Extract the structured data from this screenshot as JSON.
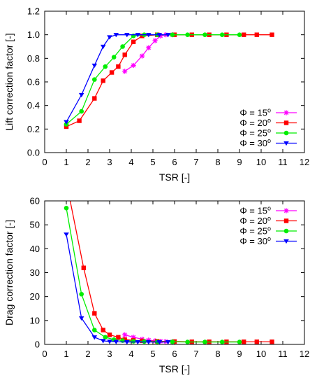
{
  "chart_data": [
    {
      "type": "line",
      "xlabel": "TSR [-]",
      "ylabel": "Lift correction factor [-]",
      "xlim": [
        0,
        12
      ],
      "ylim": [
        0,
        1.2
      ],
      "xticks": [
        "0",
        "1",
        "2",
        "3",
        "4",
        "5",
        "6",
        "7",
        "8",
        "9",
        "10",
        "11",
        "12"
      ],
      "yticks": [
        "0.0",
        "0.2",
        "0.4",
        "0.6",
        "0.8",
        "1.0",
        "1.2"
      ],
      "legend_position": "bottom-right",
      "series": [
        {
          "label": "Φ = 15",
          "sup": "o",
          "color": "#ff00ff",
          "marker": "star",
          "x": [
            3.7,
            4.1,
            4.5,
            4.8,
            5.1,
            5.35,
            5.6,
            5.9
          ],
          "y": [
            0.69,
            0.74,
            0.82,
            0.89,
            0.95,
            0.99,
            1.0,
            1.0
          ]
        },
        {
          "label": "Φ = 20",
          "sup": "o",
          "color": "#ff0000",
          "marker": "square",
          "x": [
            1.0,
            1.6,
            2.3,
            2.7,
            3.1,
            3.4,
            3.7,
            4.1,
            4.5,
            5.2,
            6.0,
            6.8,
            7.6,
            8.4,
            9.2,
            9.8,
            10.5
          ],
          "y": [
            0.22,
            0.27,
            0.46,
            0.61,
            0.68,
            0.73,
            0.83,
            0.94,
            0.99,
            1.0,
            1.0,
            1.0,
            1.0,
            1.0,
            1.0,
            1.0,
            1.0
          ]
        },
        {
          "label": "Φ = 25",
          "sup": "o",
          "color": "#00ee00",
          "marker": "circle",
          "x": [
            1.0,
            1.7,
            2.3,
            2.8,
            3.2,
            3.6,
            4.1,
            4.6,
            5.2,
            5.9,
            6.6,
            7.4,
            8.2,
            9.0
          ],
          "y": [
            0.24,
            0.35,
            0.62,
            0.73,
            0.81,
            0.9,
            0.99,
            1.0,
            1.0,
            1.0,
            1.0,
            1.0,
            1.0,
            1.0
          ]
        },
        {
          "label": "Φ = 30",
          "sup": "o",
          "color": "#0000ff",
          "marker": "triangle",
          "x": [
            1.0,
            1.7,
            2.3,
            2.7,
            3.0,
            3.3,
            3.8,
            4.3,
            4.8,
            5.3,
            5.7
          ],
          "y": [
            0.26,
            0.49,
            0.74,
            0.9,
            0.98,
            1.0,
            1.0,
            1.0,
            1.0,
            1.0,
            1.0
          ]
        }
      ]
    },
    {
      "type": "line",
      "xlabel": "TSR [-]",
      "ylabel": "Drag correction factor [-]",
      "xlim": [
        0,
        12
      ],
      "ylim": [
        0,
        60
      ],
      "xticks": [
        "0",
        "1",
        "2",
        "3",
        "4",
        "5",
        "6",
        "7",
        "8",
        "9",
        "10",
        "11",
        "12"
      ],
      "yticks": [
        "0",
        "10",
        "20",
        "30",
        "40",
        "50",
        "60"
      ],
      "legend_position": "top-right",
      "series": [
        {
          "label": "Φ = 15",
          "sup": "o",
          "color": "#ff00ff",
          "marker": "star",
          "x": [
            3.7,
            4.1,
            4.5,
            4.8,
            5.1,
            5.35,
            5.6,
            5.9
          ],
          "y": [
            4.0,
            3.0,
            2.2,
            1.8,
            1.5,
            1.3,
            1.2,
            1.1
          ]
        },
        {
          "label": "Φ = 20",
          "sup": "o",
          "color": "#ff0000",
          "marker": "square",
          "x": [
            1.0,
            1.8,
            2.3,
            2.7,
            3.0,
            3.4,
            3.7,
            4.1,
            4.5,
            5.2,
            6.0,
            6.8,
            7.6,
            8.4,
            9.2,
            9.8,
            10.5
          ],
          "y": [
            68.0,
            32.0,
            13.0,
            6.0,
            4.0,
            3.0,
            2.0,
            1.7,
            1.5,
            1.3,
            1.2,
            1.1,
            1.1,
            1.1,
            1.1,
            1.1,
            1.1
          ]
        },
        {
          "label": "Φ = 25",
          "sup": "o",
          "color": "#00ee00",
          "marker": "circle",
          "x": [
            1.0,
            1.7,
            2.3,
            2.8,
            3.2,
            3.6,
            4.1,
            4.6,
            5.2,
            5.9,
            6.6,
            7.4,
            8.2,
            9.0
          ],
          "y": [
            57.0,
            21.0,
            6.0,
            3.0,
            2.0,
            1.6,
            1.3,
            1.2,
            1.1,
            1.1,
            1.0,
            1.0,
            1.0,
            1.0
          ]
        },
        {
          "label": "Φ = 30",
          "sup": "o",
          "color": "#0000ff",
          "marker": "triangle",
          "x": [
            1.0,
            1.7,
            2.3,
            2.7,
            3.0,
            3.3,
            3.8,
            4.3,
            4.8,
            5.3,
            5.7
          ],
          "y": [
            46.0,
            11.0,
            3.0,
            1.5,
            1.2,
            1.1,
            1.0,
            1.0,
            1.0,
            1.0,
            1.0
          ]
        }
      ]
    }
  ]
}
